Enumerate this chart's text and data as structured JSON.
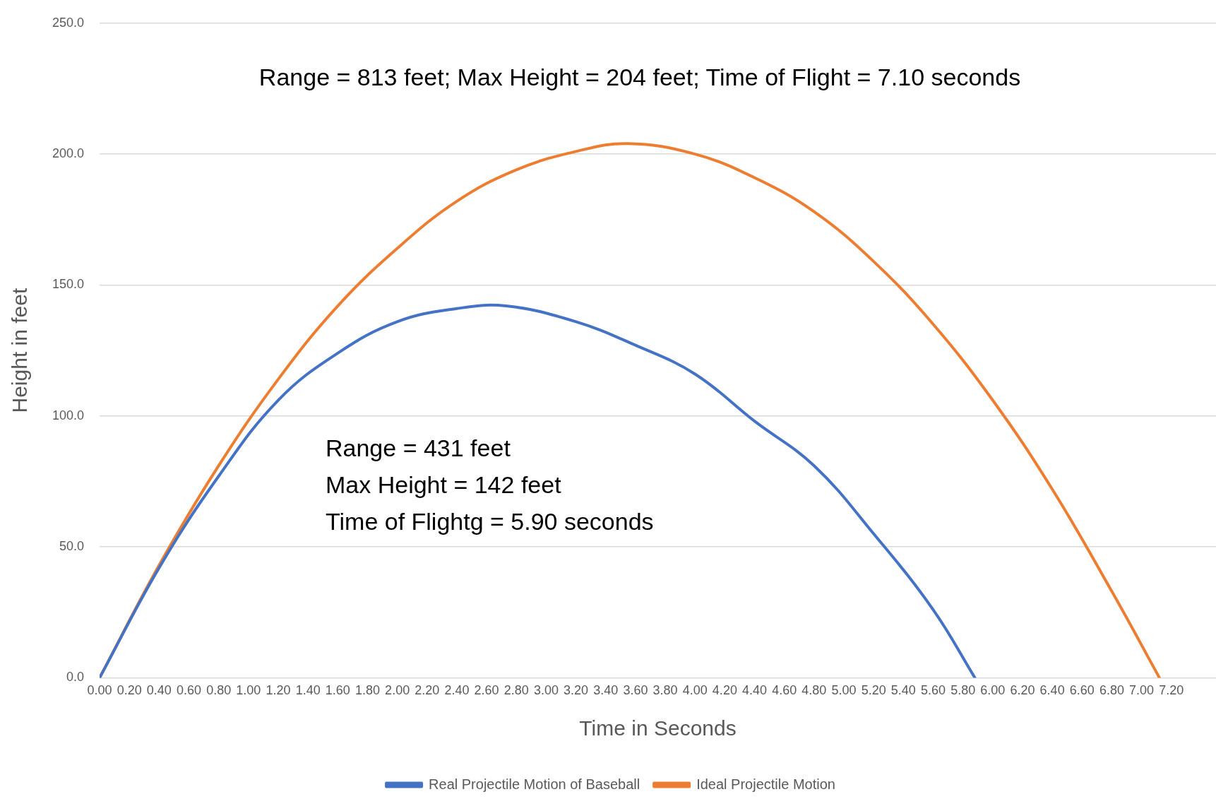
{
  "chart_data": {
    "type": "line",
    "xlabel": "Time in Seconds",
    "ylabel": "Height in feet",
    "annotations": [
      "Range = 813 feet; Max Height = 204 feet; Time of Flight = 7.10 seconds",
      "Range = 431 feet",
      "Max Height = 142 feet",
      "Time of Flightg = 5.90 seconds"
    ],
    "series": [
      {
        "name": "Real Projectile Motion of Baseball",
        "color": "#4472c4",
        "x": [
          0,
          0.4,
          0.8,
          1.2,
          1.6,
          2.0,
          2.4,
          2.73,
          3.2,
          3.6,
          4.0,
          4.4,
          4.8,
          5.2,
          5.6,
          5.88
        ],
        "values": [
          0,
          42,
          77,
          106,
          124,
          136,
          141,
          142,
          136,
          127,
          116,
          98,
          81,
          55,
          26,
          0
        ]
      },
      {
        "name": "Ideal Projectile Motion",
        "color": "#ed7d31",
        "x": [
          0,
          0.4,
          0.8,
          1.2,
          1.6,
          2.0,
          2.4,
          2.8,
          3.2,
          3.55,
          4.0,
          4.4,
          4.8,
          5.2,
          5.6,
          6.0,
          6.4,
          6.8,
          7.12
        ],
        "values": [
          0,
          43,
          81,
          114,
          142,
          164,
          182,
          194,
          201,
          204,
          200,
          191,
          178,
          159,
          135,
          106,
          72,
          33,
          0
        ]
      }
    ],
    "xlim": [
      0,
      7.5
    ],
    "xticks": [
      {
        "value": 0,
        "label": "0.00"
      },
      {
        "value": 0.2,
        "label": "0.20"
      },
      {
        "value": 0.4,
        "label": "0.40"
      },
      {
        "value": 0.6,
        "label": "0.60"
      },
      {
        "value": 0.8,
        "label": "0.80"
      },
      {
        "value": 1.0,
        "label": "1.00"
      },
      {
        "value": 1.2,
        "label": "1.20"
      },
      {
        "value": 1.4,
        "label": "1.40"
      },
      {
        "value": 1.6,
        "label": "1.60"
      },
      {
        "value": 1.8,
        "label": "1.80"
      },
      {
        "value": 2.0,
        "label": "2.00"
      },
      {
        "value": 2.2,
        "label": "2.20"
      },
      {
        "value": 2.4,
        "label": "2.40"
      },
      {
        "value": 2.6,
        "label": "2.60"
      },
      {
        "value": 2.8,
        "label": "2.80"
      },
      {
        "value": 3.0,
        "label": "3.00"
      },
      {
        "value": 3.2,
        "label": "3.20"
      },
      {
        "value": 3.4,
        "label": "3.40"
      },
      {
        "value": 3.6,
        "label": "3.60"
      },
      {
        "value": 3.8,
        "label": "3.80"
      },
      {
        "value": 4.0,
        "label": "4.00"
      },
      {
        "value": 4.2,
        "label": "4.20"
      },
      {
        "value": 4.4,
        "label": "4.40"
      },
      {
        "value": 4.6,
        "label": "4.60"
      },
      {
        "value": 4.8,
        "label": "4.80"
      },
      {
        "value": 5.0,
        "label": "5.00"
      },
      {
        "value": 5.2,
        "label": "5.20"
      },
      {
        "value": 5.4,
        "label": "5.40"
      },
      {
        "value": 5.6,
        "label": "5.60"
      },
      {
        "value": 5.8,
        "label": "5.80"
      },
      {
        "value": 6.0,
        "label": "6.00"
      },
      {
        "value": 6.2,
        "label": "6.20"
      },
      {
        "value": 6.4,
        "label": "6.40"
      },
      {
        "value": 6.6,
        "label": "6.60"
      },
      {
        "value": 6.8,
        "label": "6.80"
      },
      {
        "value": 7.0,
        "label": "7.00"
      },
      {
        "value": 7.2,
        "label": "7.20"
      }
    ],
    "ylim": [
      0,
      250
    ],
    "yticks": [
      {
        "value": 0,
        "label": "0.0"
      },
      {
        "value": 50,
        "label": "50.0"
      },
      {
        "value": 100,
        "label": "100.0"
      },
      {
        "value": 150,
        "label": "150.0"
      },
      {
        "value": 200,
        "label": "200.0"
      },
      {
        "value": 250,
        "label": "250.0"
      }
    ],
    "grid": "y",
    "legend": "bottom",
    "marker": "none",
    "line_style": "solid"
  }
}
